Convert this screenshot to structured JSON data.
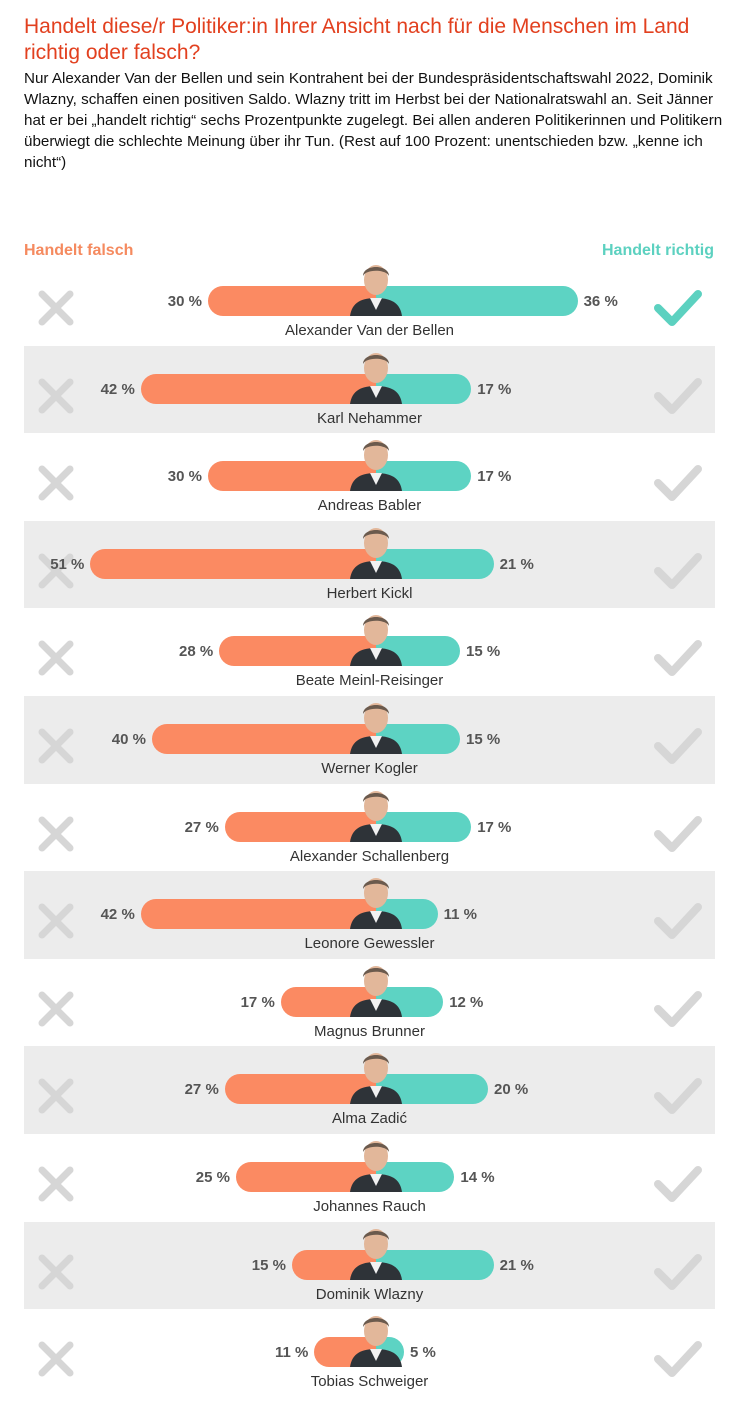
{
  "title": "Handelt diese/r Politiker:in Ihrer Ansicht nach für die Menschen im Land richtig oder falsch?",
  "subtitle": "Nur Alexander Van der Bellen und sein Kontrahent bei der Bundespräsidentschaftswahl 2022, Dominik Wlazny, schaffen einen positiven Saldo. Wlazny tritt im Herbst bei der Nationalratswahl an. Seit Jänner hat er bei „handelt richtig“ sechs Prozentpunkte zugelegt. Bei allen anderen Politikerinnen und Politikern überwiegt die schlechte Meinung über ihr Tun. (Rest auf 100 Prozent: unentschieden bzw. „kenne ich nicht“)",
  "legend": {
    "left": "Handelt falsch",
    "right": "Handelt richtig"
  },
  "colors": {
    "falsch": "#fb8a62",
    "richtig": "#5dd3c3",
    "title": "#e2401f"
  },
  "chart_data": {
    "type": "bar",
    "orientation": "diverging-horizontal",
    "title": "Handelt diese/r Politiker:in Ihrer Ansicht nach für die Menschen im Land richtig oder falsch?",
    "unit": "%",
    "categories": [
      "Alexander Van der Bellen",
      "Karl Nehammer",
      "Andreas Babler",
      "Herbert Kickl",
      "Beate Meinl-Reisinger",
      "Werner Kogler",
      "Alexander Schallenberg",
      "Leonore Gewessler",
      "Magnus Brunner",
      "Alma Zadić",
      "Johannes Rauch",
      "Dominik Wlazny",
      "Tobias Schweiger"
    ],
    "series": [
      {
        "name": "Handelt falsch",
        "values": [
          30,
          42,
          30,
          51,
          28,
          40,
          27,
          42,
          17,
          27,
          25,
          15,
          11
        ]
      },
      {
        "name": "Handelt richtig",
        "values": [
          36,
          17,
          17,
          21,
          15,
          15,
          17,
          11,
          12,
          20,
          14,
          21,
          5
        ]
      }
    ],
    "labels_falsch": [
      "30 %",
      "42 %",
      "30 %",
      "51 %",
      "28 %",
      "40 %",
      "27 %",
      "42 %",
      "17 %",
      "27 %",
      "25 %",
      "15 %",
      "11 %"
    ],
    "labels_richtig": [
      "36 %",
      "17 %",
      "17 %",
      "21 %",
      "15 %",
      "15 %",
      "17 %",
      "11 %",
      "12 %",
      "20 %",
      "14 %",
      "21 %",
      "5 %"
    ],
    "highlight_falsch": [
      false,
      false,
      false,
      false,
      false,
      false,
      false,
      false,
      false,
      false,
      false,
      false,
      false
    ],
    "highlight_richtig": [
      true,
      false,
      false,
      false,
      false,
      false,
      false,
      false,
      false,
      false,
      false,
      false,
      false
    ],
    "legend_position": "top"
  }
}
